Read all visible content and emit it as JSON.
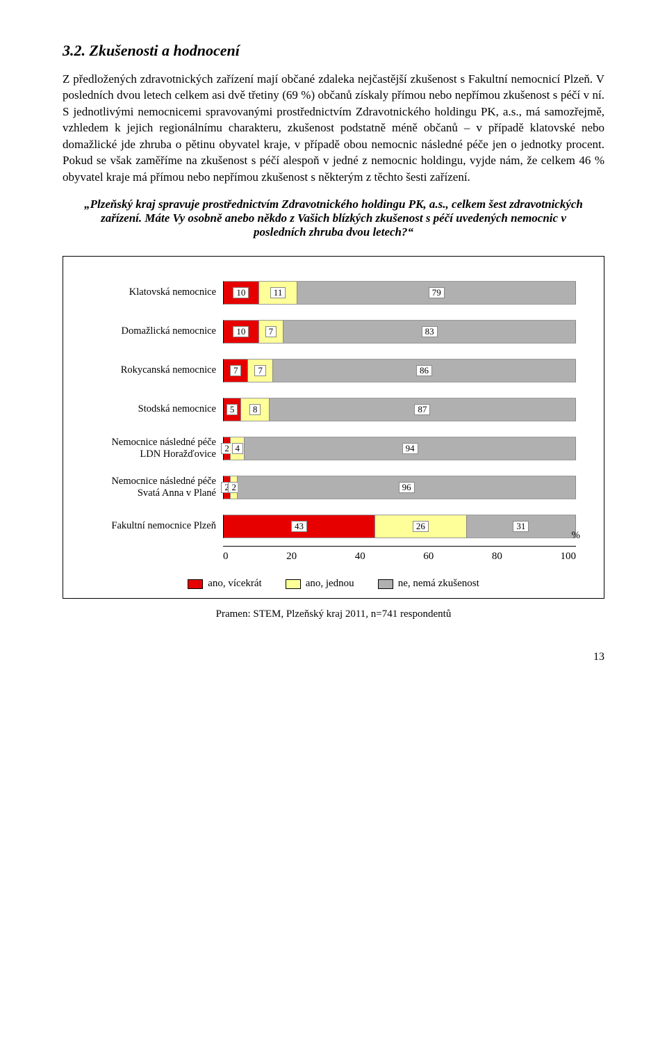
{
  "heading": "3.2. Zkušenosti a hodnocení",
  "para1": "Z předložených zdravotnických zařízení mají občané zdaleka nejčastější zkušenost s Fakultní nemocnicí Plzeň. V posledních dvou letech celkem asi dvě třetiny (69 %) občanů získaly přímou nebo nepřímou zkušenost s péčí v ní. S jednotlivými nemocnicemi spravovanými prostřednictvím Zdravotnického holdingu PK, a.s., má samozřejmě, vzhledem k jejich regionálnímu charakteru, zkušenost podstatně méně občanů – v případě klatovské nebo domažlické jde zhruba o pětinu obyvatel kraje, v případě obou nemocnic následné péče jen o jednotky procent. Pokud se však zaměříme na zkušenost s péčí alespoň v jedné z nemocnic holdingu, vyjde nám, že celkem 46 % obyvatel kraje má přímou nebo nepřímou zkušenost s některým z těchto šesti zařízení.",
  "question": "„Plzeňský kraj spravuje prostřednictvím Zdravotnického holdingu PK, a.s., celkem šest zdravotnických zařízení. Máte Vy osobně anebo někdo z Vašich blízkých zkušenost s péčí uvedených nemocnic v posledních zhruba dvou letech?“",
  "chart": {
    "type": "stacked-bar-horizontal",
    "xlim": [
      0,
      100
    ],
    "xticks": [
      0,
      20,
      40,
      60,
      80,
      100
    ],
    "percent_label": "%",
    "colors": {
      "red": "#e60000",
      "yellow": "#ffff99",
      "gray": "#b0b0b0"
    },
    "background": "#ffffff",
    "border": "#000000",
    "rows": [
      {
        "label": "Klatovská nemocnice",
        "vals": [
          10,
          11,
          79
        ]
      },
      {
        "label": "Domažlická nemocnice",
        "vals": [
          10,
          7,
          83
        ]
      },
      {
        "label": "Rokycanská nemocnice",
        "vals": [
          7,
          7,
          86
        ]
      },
      {
        "label": "Stodská nemocnice",
        "vals": [
          5,
          8,
          87
        ]
      },
      {
        "label": "Nemocnice následné péče LDN Horažďovice",
        "vals": [
          2,
          4,
          94
        ]
      },
      {
        "label": "Nemocnice následné péče Svatá Anna v Plané",
        "vals": [
          2,
          2,
          96
        ]
      },
      {
        "label": "Fakultní nemocnice Plzeň",
        "vals": [
          43,
          26,
          31
        ]
      }
    ],
    "legend": [
      {
        "swatch": "red",
        "text": "ano, vícekrát"
      },
      {
        "swatch": "yellow",
        "text": "ano, jednou"
      },
      {
        "swatch": "gray",
        "text": "ne, nemá zkušenost"
      }
    ]
  },
  "source": "Pramen: STEM, Plzeňský kraj 2011, n=741 respondentů",
  "pagenum": "13"
}
